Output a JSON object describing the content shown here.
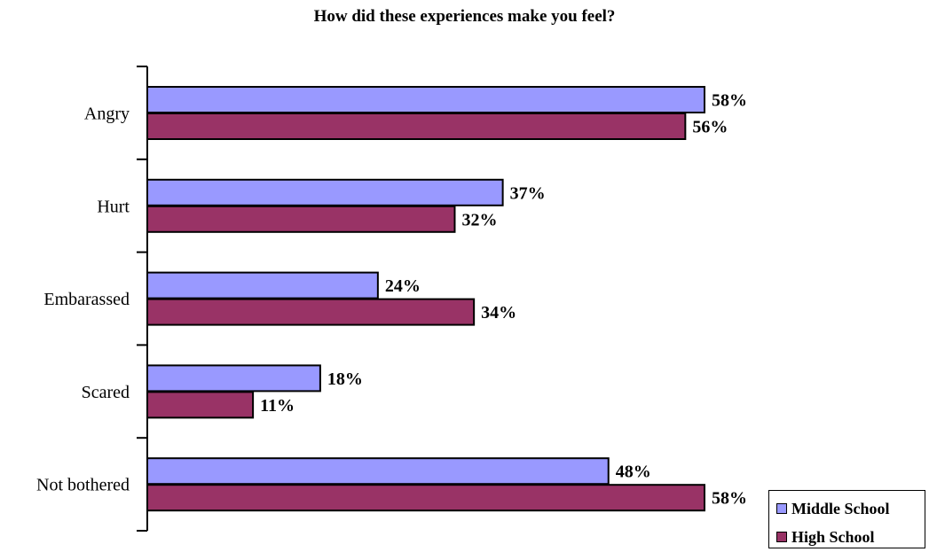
{
  "chart_data": {
    "type": "bar",
    "orientation": "horizontal",
    "title": "How did these experiences make you feel?",
    "categories": [
      "Angry",
      "Hurt",
      "Embarassed",
      "Scared",
      "Not bothered"
    ],
    "series": [
      {
        "name": "Middle School",
        "color": "#9999ff",
        "values": [
          58,
          37,
          24,
          18,
          48
        ],
        "labels": [
          "58%",
          "37%",
          "24%",
          "18%",
          "48%"
        ]
      },
      {
        "name": "High School",
        "color": "#993366",
        "values": [
          56,
          32,
          34,
          11,
          58
        ],
        "labels": [
          "56%",
          "32%",
          "34%",
          "11%",
          "58%"
        ]
      }
    ],
    "value_unit": "%",
    "xlim": [
      0,
      58
    ],
    "grid": false,
    "legend_position": "bottom-right"
  }
}
